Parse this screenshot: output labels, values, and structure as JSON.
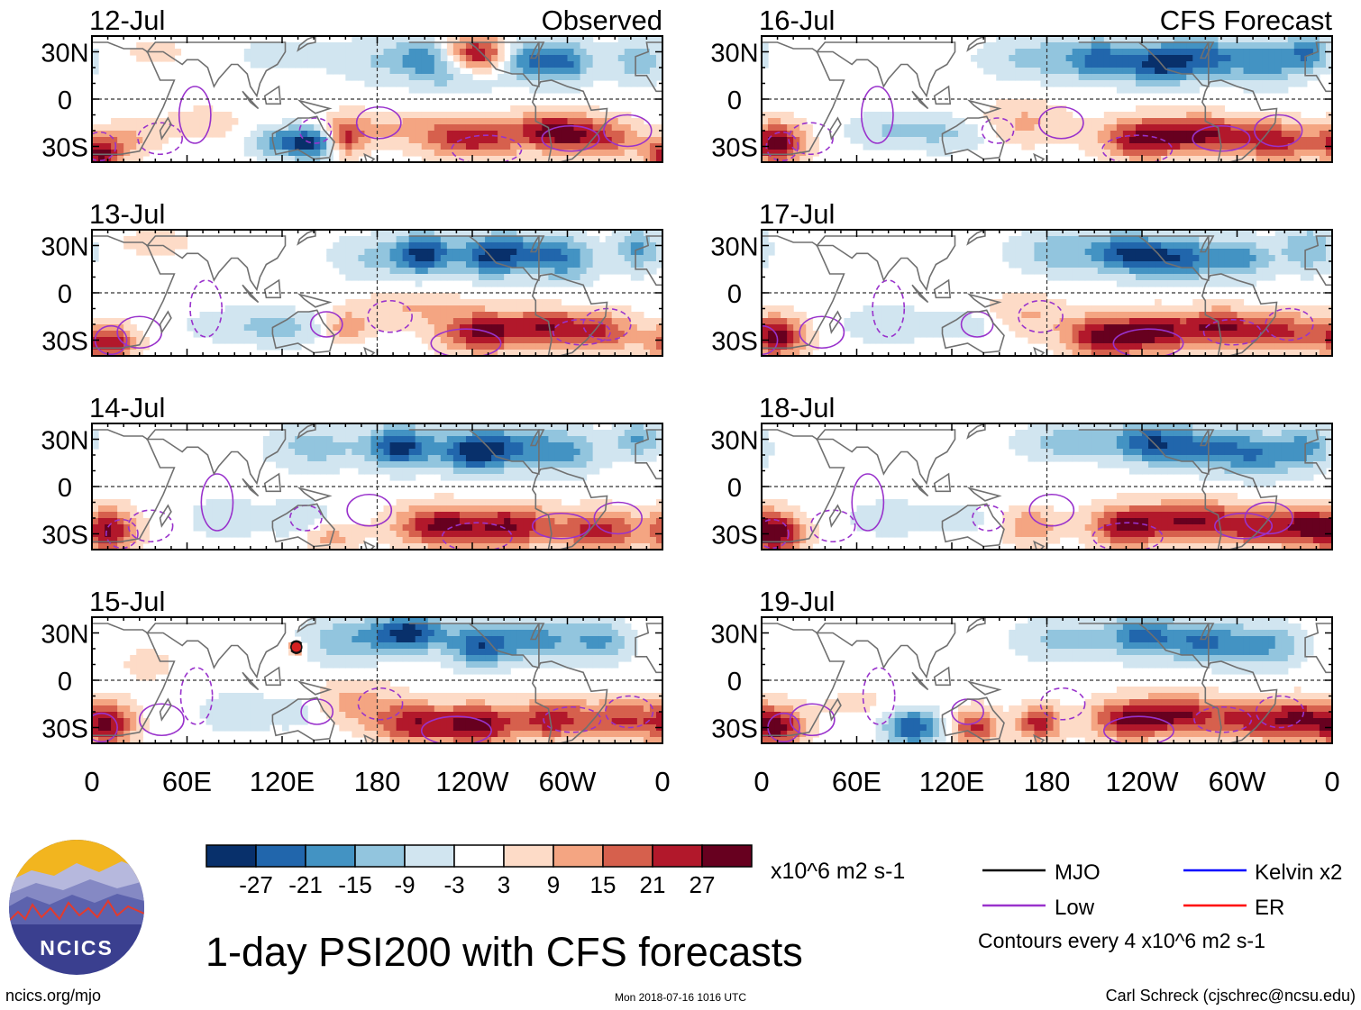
{
  "colors": {
    "scale": [
      "#08306b",
      "#2166ac",
      "#4393c3",
      "#92c5de",
      "#d1e5f0",
      "#ffffff",
      "#fddbc7",
      "#f4a582",
      "#d6604d",
      "#b2182b",
      "#67001f"
    ],
    "mjo": "#000000",
    "low": "#9932cc",
    "kelvin": "#0000ff",
    "er": "#ff0000",
    "coast": "#707070"
  },
  "chart_data": {
    "type": "heatmap",
    "title": "1-day PSI200 with CFS forecasts",
    "variable": "PSI200",
    "columns": [
      {
        "label": "Observed",
        "panels": [
          "12-Jul",
          "13-Jul",
          "14-Jul",
          "15-Jul"
        ]
      },
      {
        "label": "CFS Forecast",
        "panels": [
          "16-Jul",
          "17-Jul",
          "18-Jul",
          "19-Jul"
        ]
      }
    ],
    "x_ticks": [
      "0",
      "60E",
      "120E",
      "180",
      "120W",
      "60W",
      "0"
    ],
    "x_tick_lon": [
      0,
      60,
      120,
      180,
      240,
      300,
      360
    ],
    "y_ticks": [
      "30N",
      "0",
      "30S"
    ],
    "y_tick_lat": [
      30,
      0,
      -30
    ],
    "lat_range": [
      -40,
      40
    ],
    "lon_range": [
      0,
      360
    ],
    "colorbar": {
      "tick_labels": [
        "-27",
        "-21",
        "-15",
        "-9",
        "-3",
        "3",
        "9",
        "15",
        "21",
        "27"
      ],
      "levels": [
        -27,
        -21,
        -15,
        -9,
        -3,
        3,
        9,
        15,
        21,
        27
      ],
      "units": "x10^6 m2 s-1"
    },
    "legend": [
      {
        "label": "MJO",
        "color": "#000000"
      },
      {
        "label": "Kelvin x2",
        "color": "#0000ff"
      },
      {
        "label": "Low",
        "color": "#9932cc"
      },
      {
        "label": "ER",
        "color": "#ff0000"
      }
    ],
    "contour_note": "Contours every 4 x10^6 m2 s-1",
    "typhoon_marker": {
      "panel": "15-Jul",
      "lon": 129,
      "lat": 21
    },
    "fields": [
      {
        "panel": "12-Jul",
        "blobs": [
          [
            245,
            28,
            1.0,
            14,
            9
          ],
          [
            210,
            27,
            -0.5,
            12,
            8
          ],
          [
            275,
            25,
            -0.7,
            16,
            9
          ],
          [
            300,
            23,
            -0.55,
            12,
            10
          ],
          [
            345,
            25,
            -0.45,
            12,
            10
          ],
          [
            230,
            15,
            -0.4,
            20,
            8
          ],
          [
            180,
            25,
            -0.3,
            20,
            10
          ],
          [
            140,
            -28,
            -0.8,
            10,
            7
          ],
          [
            120,
            -27,
            -0.65,
            14,
            7
          ],
          [
            160,
            -25,
            0.7,
            8,
            8
          ],
          [
            240,
            -25,
            0.8,
            22,
            9
          ],
          [
            290,
            -20,
            0.85,
            16,
            8
          ],
          [
            320,
            -25,
            0.7,
            18,
            9
          ],
          [
            5,
            -35,
            0.95,
            10,
            8
          ],
          [
            25,
            -25,
            0.3,
            12,
            8
          ],
          [
            185,
            -18,
            0.3,
            30,
            8
          ],
          [
            70,
            -15,
            0.2,
            20,
            8
          ],
          [
            40,
            30,
            0.15,
            18,
            6
          ],
          [
            120,
            28,
            -0.2,
            20,
            8
          ]
        ]
      },
      {
        "panel": "13-Jul",
        "blobs": [
          [
            210,
            25,
            -0.9,
            12,
            9
          ],
          [
            250,
            23,
            -0.8,
            14,
            9
          ],
          [
            275,
            26,
            -0.55,
            18,
            9
          ],
          [
            300,
            20,
            -0.5,
            14,
            10
          ],
          [
            345,
            28,
            -0.55,
            10,
            10
          ],
          [
            180,
            22,
            -0.35,
            22,
            10
          ],
          [
            120,
            -22,
            -0.35,
            22,
            8
          ],
          [
            245,
            -25,
            0.9,
            18,
            9
          ],
          [
            285,
            -22,
            0.75,
            18,
            8
          ],
          [
            320,
            -25,
            0.65,
            18,
            9
          ],
          [
            10,
            -32,
            0.9,
            12,
            8
          ],
          [
            160,
            -22,
            0.5,
            10,
            7
          ],
          [
            200,
            -10,
            0.3,
            25,
            8
          ],
          [
            80,
            -20,
            -0.15,
            20,
            8
          ],
          [
            40,
            32,
            0.2,
            18,
            6
          ],
          [
            130,
            15,
            0.1,
            15,
            6
          ]
        ]
      },
      {
        "panel": "14-Jul",
        "blobs": [
          [
            195,
            25,
            -1.0,
            15,
            9
          ],
          [
            240,
            22,
            -0.9,
            14,
            9
          ],
          [
            265,
            25,
            -0.6,
            18,
            9
          ],
          [
            300,
            22,
            -0.5,
            16,
            10
          ],
          [
            345,
            30,
            -0.55,
            10,
            8
          ],
          [
            140,
            25,
            -0.4,
            20,
            10
          ],
          [
            85,
            -20,
            -0.3,
            15,
            8
          ],
          [
            130,
            -20,
            -0.3,
            15,
            8
          ],
          [
            220,
            -25,
            0.95,
            20,
            9
          ],
          [
            265,
            -25,
            0.85,
            18,
            9
          ],
          [
            320,
            -28,
            0.8,
            20,
            9
          ],
          [
            10,
            -28,
            0.9,
            12,
            10
          ],
          [
            150,
            -32,
            0.4,
            12,
            7
          ],
          [
            60,
            30,
            0.1,
            20,
            7
          ]
        ]
      },
      {
        "panel": "15-Jul",
        "blobs": [
          [
            200,
            30,
            -1.0,
            16,
            8
          ],
          [
            245,
            22,
            -0.85,
            14,
            9
          ],
          [
            280,
            26,
            -0.6,
            16,
            9
          ],
          [
            320,
            25,
            -0.55,
            14,
            9
          ],
          [
            160,
            25,
            -0.45,
            20,
            10
          ],
          [
            90,
            -20,
            -0.3,
            15,
            8
          ],
          [
            130,
            -20,
            -0.25,
            15,
            8
          ],
          [
            205,
            -28,
            0.85,
            18,
            9
          ],
          [
            245,
            -28,
            0.95,
            16,
            9
          ],
          [
            290,
            -25,
            0.8,
            16,
            9
          ],
          [
            335,
            -25,
            0.7,
            18,
            9
          ],
          [
            10,
            -28,
            0.85,
            12,
            10
          ],
          [
            165,
            -15,
            0.4,
            20,
            10
          ],
          [
            35,
            10,
            0.15,
            15,
            10
          ],
          [
            129,
            21,
            0.9,
            2.5,
            3
          ]
        ]
      },
      {
        "panel": "16-Jul",
        "blobs": [
          [
            215,
            25,
            -0.7,
            14,
            9
          ],
          [
            250,
            22,
            -0.85,
            14,
            9
          ],
          [
            280,
            26,
            -0.75,
            18,
            9
          ],
          [
            320,
            23,
            -0.55,
            16,
            10
          ],
          [
            345,
            30,
            -0.6,
            10,
            8
          ],
          [
            175,
            26,
            -0.4,
            25,
            10
          ],
          [
            80,
            -20,
            -0.3,
            20,
            8
          ],
          [
            120,
            -22,
            -0.3,
            20,
            8
          ],
          [
            240,
            -25,
            0.95,
            18,
            9
          ],
          [
            280,
            -22,
            0.9,
            18,
            8
          ],
          [
            325,
            -27,
            0.8,
            18,
            9
          ],
          [
            10,
            -28,
            1.0,
            12,
            9
          ],
          [
            165,
            -15,
            0.35,
            20,
            10
          ]
        ]
      },
      {
        "panel": "17-Jul",
        "blobs": [
          [
            230,
            25,
            -0.75,
            14,
            9
          ],
          [
            260,
            22,
            -0.85,
            16,
            9
          ],
          [
            300,
            22,
            -0.6,
            16,
            9
          ],
          [
            345,
            28,
            -0.5,
            12,
            10
          ],
          [
            190,
            26,
            -0.45,
            22,
            10
          ],
          [
            80,
            -20,
            -0.3,
            18,
            8
          ],
          [
            135,
            -20,
            -0.25,
            18,
            8
          ],
          [
            215,
            -28,
            0.95,
            16,
            9
          ],
          [
            250,
            -25,
            0.9,
            18,
            9
          ],
          [
            290,
            -22,
            0.85,
            16,
            8
          ],
          [
            330,
            -25,
            0.7,
            18,
            9
          ],
          [
            10,
            -28,
            0.95,
            12,
            9
          ],
          [
            165,
            -15,
            0.35,
            20,
            10
          ]
        ]
      },
      {
        "panel": "18-Jul",
        "blobs": [
          [
            245,
            28,
            -0.8,
            16,
            9
          ],
          [
            280,
            24,
            -0.7,
            18,
            9
          ],
          [
            315,
            20,
            -0.6,
            16,
            10
          ],
          [
            345,
            25,
            -0.5,
            12,
            10
          ],
          [
            195,
            28,
            -0.45,
            22,
            8
          ],
          [
            80,
            -20,
            -0.25,
            18,
            8
          ],
          [
            125,
            -20,
            -0.2,
            15,
            8
          ],
          [
            230,
            -25,
            0.95,
            16,
            9
          ],
          [
            270,
            -22,
            0.85,
            18,
            9
          ],
          [
            310,
            -25,
            0.75,
            18,
            9
          ],
          [
            345,
            -25,
            0.85,
            14,
            9
          ],
          [
            10,
            -30,
            0.95,
            12,
            9
          ],
          [
            170,
            -25,
            0.5,
            12,
            8
          ]
        ]
      },
      {
        "panel": "19-Jul",
        "blobs": [
          [
            240,
            28,
            -0.7,
            16,
            9
          ],
          [
            280,
            24,
            -0.7,
            18,
            9
          ],
          [
            320,
            22,
            -0.5,
            16,
            10
          ],
          [
            190,
            26,
            -0.35,
            22,
            10
          ],
          [
            95,
            -30,
            -0.9,
            12,
            8
          ],
          [
            135,
            -30,
            0.8,
            10,
            8
          ],
          [
            175,
            -27,
            0.8,
            10,
            8
          ],
          [
            230,
            -25,
            0.9,
            16,
            9
          ],
          [
            265,
            -22,
            0.85,
            16,
            9
          ],
          [
            305,
            -25,
            0.7,
            16,
            9
          ],
          [
            340,
            -25,
            0.9,
            16,
            9
          ],
          [
            10,
            -30,
            0.9,
            12,
            9
          ],
          [
            60,
            -15,
            0.15,
            20,
            8
          ]
        ]
      }
    ]
  },
  "logo": {
    "text": "NCICS"
  },
  "footer": {
    "url": "ncics.org/mjo",
    "timestamp": "Mon 2018-07-16 1016 UTC",
    "credit": "Carl Schreck (cjschrec@ncsu.edu)"
  }
}
